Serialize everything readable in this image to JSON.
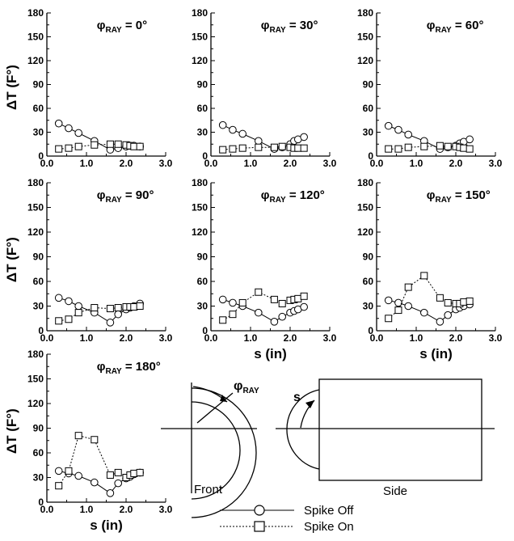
{
  "chart_data": [
    {
      "type": "line",
      "title_prefix": "φ",
      "title_sub": "RAY",
      "title_value": "= 0°",
      "ylabel": "ΔT (F°)",
      "xlabel": "",
      "xlim": [
        0,
        3
      ],
      "ylim": [
        0,
        180
      ],
      "xticks": [
        "0.0",
        "1.0",
        "2.0",
        "3.0"
      ],
      "yticks": [
        "0",
        "30",
        "60",
        "90",
        "120",
        "150",
        "180"
      ],
      "series": [
        {
          "name": "Spike Off",
          "x": [
            0.3,
            0.55,
            0.8,
            1.2,
            1.6,
            1.8,
            2.0,
            2.1,
            2.2,
            2.35
          ],
          "y": [
            41,
            35,
            29,
            19,
            8,
            10,
            12,
            13,
            13,
            12
          ]
        },
        {
          "name": "Spike On",
          "x": [
            0.3,
            0.55,
            0.8,
            1.2,
            1.6,
            1.8,
            2.0,
            2.1,
            2.2,
            2.35
          ],
          "y": [
            9,
            10,
            12,
            14,
            15,
            15,
            14,
            13,
            12,
            12
          ]
        }
      ]
    },
    {
      "type": "line",
      "title_prefix": "φ",
      "title_sub": "RAY",
      "title_value": "= 30°",
      "ylabel": "",
      "xlabel": "",
      "xlim": [
        0,
        3
      ],
      "ylim": [
        0,
        180
      ],
      "xticks": [
        "0.0",
        "1.0",
        "2.0",
        "3.0"
      ],
      "yticks": [
        "0",
        "30",
        "60",
        "90",
        "120",
        "150",
        "180"
      ],
      "series": [
        {
          "name": "Spike Off",
          "x": [
            0.3,
            0.55,
            0.8,
            1.2,
            1.6,
            1.8,
            2.0,
            2.1,
            2.2,
            2.35
          ],
          "y": [
            39,
            33,
            28,
            19,
            9,
            11,
            15,
            19,
            21,
            24
          ]
        },
        {
          "name": "Spike On",
          "x": [
            0.3,
            0.55,
            0.8,
            1.2,
            1.6,
            1.8,
            2.0,
            2.1,
            2.2,
            2.35
          ],
          "y": [
            8,
            9,
            10,
            11,
            11,
            12,
            11,
            10,
            10,
            10
          ]
        }
      ]
    },
    {
      "type": "line",
      "title_prefix": "φ",
      "title_sub": "RAY",
      "title_value": "= 60°",
      "ylabel": "",
      "xlabel": "",
      "xlim": [
        0,
        3
      ],
      "ylim": [
        0,
        180
      ],
      "xticks": [
        "0.0",
        "1.0",
        "2.0",
        "3.0"
      ],
      "yticks": [
        "0",
        "30",
        "60",
        "90",
        "120",
        "150",
        "180"
      ],
      "series": [
        {
          "name": "Spike Off",
          "x": [
            0.3,
            0.55,
            0.8,
            1.2,
            1.6,
            1.8,
            2.0,
            2.1,
            2.2,
            2.35
          ],
          "y": [
            38,
            33,
            27,
            19,
            9,
            11,
            13,
            16,
            18,
            21
          ]
        },
        {
          "name": "Spike On",
          "x": [
            0.3,
            0.55,
            0.8,
            1.2,
            1.6,
            1.8,
            2.0,
            2.1,
            2.2,
            2.35
          ],
          "y": [
            9,
            9,
            11,
            12,
            13,
            12,
            12,
            11,
            10,
            9
          ]
        }
      ]
    },
    {
      "type": "line",
      "title_prefix": "φ",
      "title_sub": "RAY",
      "title_value": "= 90°",
      "ylabel": "ΔT (F°)",
      "xlabel": "",
      "xlim": [
        0,
        3
      ],
      "ylim": [
        0,
        180
      ],
      "xticks": [
        "0.0",
        "1.0",
        "2.0",
        "3.0"
      ],
      "yticks": [
        "0",
        "30",
        "60",
        "90",
        "120",
        "150",
        "180"
      ],
      "series": [
        {
          "name": "Spike Off",
          "x": [
            0.3,
            0.55,
            0.8,
            1.2,
            1.6,
            1.8,
            2.0,
            2.1,
            2.2,
            2.35
          ],
          "y": [
            40,
            36,
            30,
            22,
            10,
            20,
            26,
            28,
            30,
            33
          ]
        },
        {
          "name": "Spike On",
          "x": [
            0.3,
            0.55,
            0.8,
            1.2,
            1.6,
            1.8,
            2.0,
            2.1,
            2.2,
            2.35
          ],
          "y": [
            12,
            14,
            22,
            28,
            27,
            28,
            29,
            29,
            29,
            30
          ]
        }
      ]
    },
    {
      "type": "line",
      "title_prefix": "φ",
      "title_sub": "RAY",
      "title_value": "= 120°",
      "ylabel": "",
      "xlabel": "s (in)",
      "xlim": [
        0,
        3
      ],
      "ylim": [
        0,
        180
      ],
      "xticks": [
        "0.0",
        "1.0",
        "2.0",
        "3.0"
      ],
      "yticks": [
        "0",
        "30",
        "60",
        "90",
        "120",
        "150",
        "180"
      ],
      "series": [
        {
          "name": "Spike Off",
          "x": [
            0.3,
            0.55,
            0.8,
            1.2,
            1.6,
            1.8,
            2.0,
            2.1,
            2.2,
            2.35
          ],
          "y": [
            38,
            34,
            30,
            22,
            11,
            17,
            22,
            24,
            26,
            29
          ]
        },
        {
          "name": "Spike On",
          "x": [
            0.3,
            0.55,
            0.8,
            1.2,
            1.6,
            1.8,
            2.0,
            2.1,
            2.2,
            2.35
          ],
          "y": [
            13,
            20,
            34,
            47,
            38,
            33,
            37,
            38,
            39,
            42
          ]
        }
      ]
    },
    {
      "type": "line",
      "title_prefix": "φ",
      "title_sub": "RAY",
      "title_value": "= 150°",
      "ylabel": "",
      "xlabel": "s (in)",
      "xlim": [
        0,
        3
      ],
      "ylim": [
        0,
        180
      ],
      "xticks": [
        "0.0",
        "1.0",
        "2.0",
        "3.0"
      ],
      "yticks": [
        "0",
        "30",
        "60",
        "90",
        "120",
        "150",
        "180"
      ],
      "series": [
        {
          "name": "Spike Off",
          "x": [
            0.3,
            0.55,
            0.8,
            1.2,
            1.6,
            1.8,
            2.0,
            2.1,
            2.2,
            2.35
          ],
          "y": [
            37,
            34,
            30,
            22,
            11,
            19,
            26,
            28,
            30,
            32
          ]
        },
        {
          "name": "Spike On",
          "x": [
            0.3,
            0.55,
            0.8,
            1.2,
            1.6,
            1.8,
            2.0,
            2.1,
            2.2,
            2.35
          ],
          "y": [
            15,
            25,
            53,
            67,
            40,
            34,
            33,
            33,
            35,
            36
          ]
        }
      ]
    },
    {
      "type": "line",
      "title_prefix": "φ",
      "title_sub": "RAY",
      "title_value": "= 180°",
      "ylabel": "ΔT (F°)",
      "xlabel": "s (in)",
      "xlim": [
        0,
        3
      ],
      "ylim": [
        0,
        180
      ],
      "xticks": [
        "0.0",
        "1.0",
        "2.0",
        "3.0"
      ],
      "yticks": [
        "0",
        "30",
        "60",
        "90",
        "120",
        "150",
        "180"
      ],
      "series": [
        {
          "name": "Spike Off",
          "x": [
            0.3,
            0.55,
            0.8,
            1.2,
            1.6,
            1.8,
            2.0,
            2.1,
            2.2,
            2.35
          ],
          "y": [
            38,
            35,
            32,
            24,
            11,
            23,
            29,
            31,
            34,
            36
          ]
        },
        {
          "name": "Spike On",
          "x": [
            0.3,
            0.55,
            0.8,
            1.2,
            1.6,
            1.8,
            2.0,
            2.1,
            2.2,
            2.35
          ],
          "y": [
            20,
            38,
            81,
            76,
            33,
            36,
            30,
            33,
            35,
            36
          ]
        }
      ]
    }
  ],
  "diagram": {
    "front_label": "Front",
    "side_label": "Side",
    "angle_prefix": "φ",
    "angle_sub": "RAY",
    "s_label": "s"
  },
  "legend": {
    "spike_off": "Spike Off",
    "spike_on": "Spike On"
  }
}
